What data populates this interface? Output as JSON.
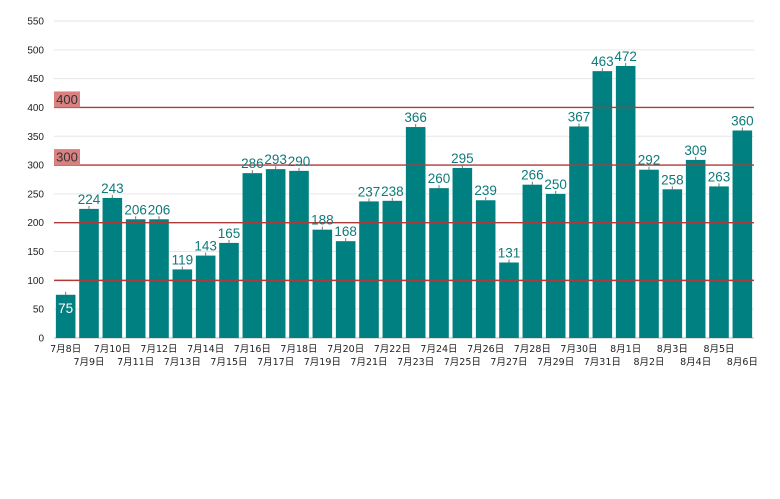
{
  "chart_data": {
    "type": "bar",
    "categories": [
      "7月8日",
      "7月9日",
      "7月10日",
      "7月11日",
      "7月12日",
      "7月13日",
      "7月14日",
      "7月15日",
      "7月16日",
      "7月17日",
      "7月18日",
      "7月19日",
      "7月20日",
      "7月21日",
      "7月22日",
      "7月23日",
      "7月24日",
      "7月25日",
      "7月26日",
      "7月27日",
      "7月28日",
      "7月29日",
      "7月30日",
      "7月31日",
      "8月1日",
      "8月2日",
      "8月3日",
      "8月4日",
      "8月5日",
      "8月6日"
    ],
    "values": [
      75,
      224,
      243,
      206,
      206,
      119,
      143,
      165,
      286,
      293,
      290,
      188,
      168,
      237,
      238,
      366,
      260,
      295,
      239,
      131,
      266,
      250,
      367,
      463,
      472,
      292,
      258,
      309,
      263,
      360
    ],
    "ylim": [
      0,
      550
    ],
    "yticks": [
      0,
      50,
      100,
      150,
      200,
      250,
      300,
      350,
      400,
      450,
      500,
      550
    ],
    "grid": true,
    "reference_lines": [
      {
        "value": 400,
        "label": "400"
      },
      {
        "value": 300,
        "label": "300"
      },
      {
        "value": 200,
        "label": ""
      },
      {
        "value": 100,
        "label": ""
      }
    ],
    "colors": {
      "bar": "#008080",
      "data_label": "#0f7a7a",
      "first_label": "#ffffff",
      "reference_line": "#b03a3a",
      "reference_label_bg": "#d98080",
      "grid": "#e6e6e6"
    }
  }
}
